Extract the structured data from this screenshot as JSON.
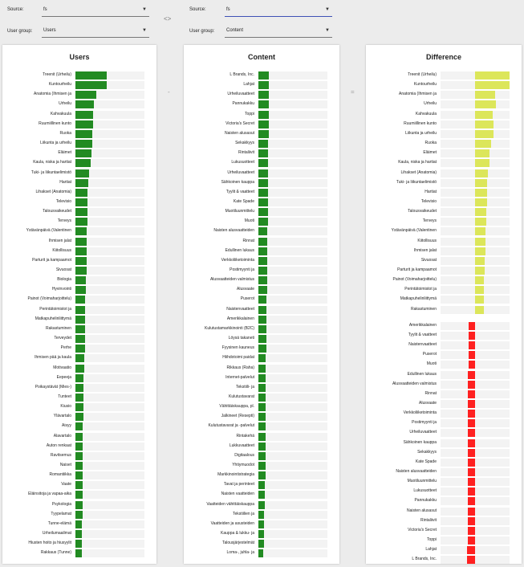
{
  "header": {
    "source_left": {
      "label": "Source:",
      "value": "fs"
    },
    "group_left": {
      "label": "User group:",
      "value": "Users"
    },
    "source_right": {
      "label": "Source:",
      "value": "fs"
    },
    "group_right": {
      "label": "User group:",
      "value": "Content"
    },
    "swap_symbol": "<>"
  },
  "operators": {
    "minus": "-",
    "equals": "="
  },
  "colors": {
    "users": "#228b22",
    "content": "#228b22",
    "diff_pos": "#dce65a",
    "diff_neg": "#ff2020",
    "track": "#f3f3f3"
  },
  "chart_data": [
    {
      "type": "bar",
      "title": "Users",
      "orientation": "horizontal",
      "categories": [
        "Treenit (Urheilu)",
        "Kuntourheilu",
        "Anatomia (Ihmisen ja",
        "Urheilu",
        "Kahvakuula",
        "Ruumiillinen kunto",
        "Ruoka",
        "Liikunta ja urheilu",
        "Eläimet",
        "Kaula, niska ja hartiat",
        "Tuki- ja liikuntaelimistö",
        "Hartiat",
        "Lihakset (Anatomia)",
        "Televisio",
        "Talousvaikeudet",
        "Terveys",
        "Ystävänpäivä (Valentinen",
        "Ihmisen jalat",
        "Kiitollisuus",
        "Parturit ja kampaamot",
        "Sivuosat",
        "Biologia",
        "Hyvinvointi",
        "Painot (Voimaharjoittelu)",
        "Perintätoimistot ja",
        "Matkapuhelinliittymä",
        "Rakastuminen",
        "Terveydet",
        "Perhe",
        "Ihmisen pää ja kaula",
        "Motivaatio",
        "Eepeeja",
        "Poikaystävät (Mies-)",
        "Tunteet",
        "Kiusio",
        "Ylävartalo",
        "Aisyy",
        "Alavartalo",
        "Auton renkaat",
        "Ravitsemus",
        "Naiset",
        "Romantiikka",
        "Vaate",
        "Eläinsitoja ja vapaa-aika",
        "Psykologia",
        "Tyypelamat",
        "Tunne-elämä",
        "Urheilumaailmat",
        "Hiusten hoito ja hiusyylit",
        "Rakkaus (Tunne)"
      ],
      "values": [
        0.45,
        0.45,
        0.3,
        0.27,
        0.25,
        0.25,
        0.24,
        0.24,
        0.23,
        0.22,
        0.2,
        0.19,
        0.18,
        0.18,
        0.17,
        0.17,
        0.16,
        0.16,
        0.16,
        0.16,
        0.16,
        0.15,
        0.15,
        0.14,
        0.14,
        0.14,
        0.14,
        0.14,
        0.14,
        0.13,
        0.13,
        0.12,
        0.12,
        0.12,
        0.12,
        0.12,
        0.11,
        0.11,
        0.11,
        0.11,
        0.1,
        0.1,
        0.1,
        0.1,
        0.1,
        0.1,
        0.09,
        0.09,
        0.09,
        0.09
      ],
      "xlim": [
        0,
        1
      ]
    },
    {
      "type": "bar",
      "title": "Content",
      "orientation": "horizontal",
      "categories": [
        "L Brands, Inc.",
        "Lahjat",
        "Urheiluvaatteet",
        "Pannukakku",
        "Toppi",
        "Victoria's Secret",
        "Naisten alusasut",
        "Sekakkyys",
        "Rintaliivit",
        "Lukusuotteet",
        "Urheiluvaatteet",
        "Sähkoinen kauppa",
        "Tyylit & vaatteet",
        "Kate Spade",
        "Muotiluunmittelu",
        "Muoti",
        "Naisten alusvaatteiden",
        "Rinnat",
        "Edullinen lukaus",
        "Verkkoliiketoiminta",
        "Postimyynti ja",
        "Alusvaatteiden valmistus",
        "Alusvaate",
        "Puserot",
        "Naistenvaatteet",
        "Amerikkalainen",
        "Kulutustamarkkinointi (B2C)",
        "Löysä takaneti",
        "Fyysinen kauneus",
        "Hiihdotoimi paidat",
        "Rikkaus (Raha)",
        "Internet-palvelut",
        "Tekstiili- ja",
        "Kulutustavarat",
        "Vähittäiskauppa, pl.",
        "Jalkineet (Resepti)",
        "Kulutustavarat ja -palvelut",
        "Rintakehä",
        "Lukkuvaatteet",
        "Digitaalous",
        "Yhtiymuodot",
        "Markkinointistrategia",
        "Tavat ja perinteet",
        "Naisten vaatteiden",
        "Vaatteiden vähittäiskauppa",
        "Tekstiilien ja",
        "Vaatteiden ja asusteiden",
        "Kauppa & lukku- ja",
        "Talousjärjestelmät",
        "Loma-, juhla- ja"
      ],
      "values": [
        0.15,
        0.15,
        0.15,
        0.15,
        0.15,
        0.15,
        0.15,
        0.14,
        0.14,
        0.14,
        0.14,
        0.14,
        0.14,
        0.14,
        0.14,
        0.14,
        0.13,
        0.13,
        0.13,
        0.13,
        0.13,
        0.13,
        0.13,
        0.12,
        0.12,
        0.12,
        0.12,
        0.12,
        0.12,
        0.11,
        0.11,
        0.11,
        0.11,
        0.11,
        0.11,
        0.1,
        0.1,
        0.1,
        0.1,
        0.1,
        0.1,
        0.1,
        0.09,
        0.09,
        0.09,
        0.08,
        0.08,
        0.08,
        0.08,
        0.07
      ],
      "xlim": [
        0,
        1
      ]
    },
    {
      "type": "bar",
      "title": "Difference",
      "orientation": "horizontal",
      "categories": [
        "Treenit (Urheilu)",
        "Kuntourheilu",
        "Anatomia (Ihmisen ja",
        "Urheilu",
        "Kahvakuula",
        "Ruumiillinen kunto",
        "Liikunta ja urheilu",
        "Ruoka",
        "Eläimet",
        "Kaula, niska ja hartiat",
        "Lihakset (Anatomia)",
        "Tuki- ja liikuntaelimistö",
        "Hartiat",
        "Televisio",
        "Talousvaikeudet",
        "Terveys",
        "Ystävänpäivä (Valentinen",
        "Kiitollisuus",
        "Ihmisen jalat",
        "Sivuosat",
        "Parturit ja kampaamot",
        "Painot (Voimaharjoittelu)",
        "Perintätoimistot ja",
        "Matkapuhelinliittymä",
        "Rakastuminen",
        "Amerikkalainen",
        "Tyylit & vaatteet",
        "Naistenvaatteet",
        "Puserot",
        "Muoti",
        "Edullinen lukaus",
        "Alusvaatteiden valmistus",
        "Rinnat",
        "Alusvaate",
        "Verkkoliiketoiminta",
        "Postimyynti ja",
        "Urheiluvaatteet",
        "Sähkoinen kauppa",
        "Sekakkyys",
        "Kate Spade",
        "Naisten alusvaatteiden",
        "Muotiluunmittelu",
        "Lukusuotteet",
        "Pannukakku",
        "Naisten alusasut",
        "Rintaliivit",
        "Victoria's Secret",
        "Toppi",
        "Lahjat",
        "L Brands, Inc."
      ],
      "values": [
        0.4,
        0.4,
        0.23,
        0.24,
        0.2,
        0.21,
        0.21,
        0.19,
        0.17,
        0.17,
        0.15,
        0.14,
        0.14,
        0.14,
        0.13,
        0.13,
        0.12,
        0.12,
        0.12,
        0.11,
        0.11,
        0.1,
        0.1,
        0.1,
        0.1,
        -0.07,
        -0.07,
        -0.07,
        -0.07,
        -0.07,
        -0.08,
        -0.08,
        -0.08,
        -0.08,
        -0.08,
        -0.08,
        -0.08,
        -0.08,
        -0.08,
        -0.08,
        -0.08,
        -0.08,
        -0.08,
        -0.08,
        -0.08,
        -0.08,
        -0.08,
        -0.08,
        -0.09,
        -0.09
      ],
      "xlim": [
        -0.4,
        0.4
      ]
    }
  ]
}
